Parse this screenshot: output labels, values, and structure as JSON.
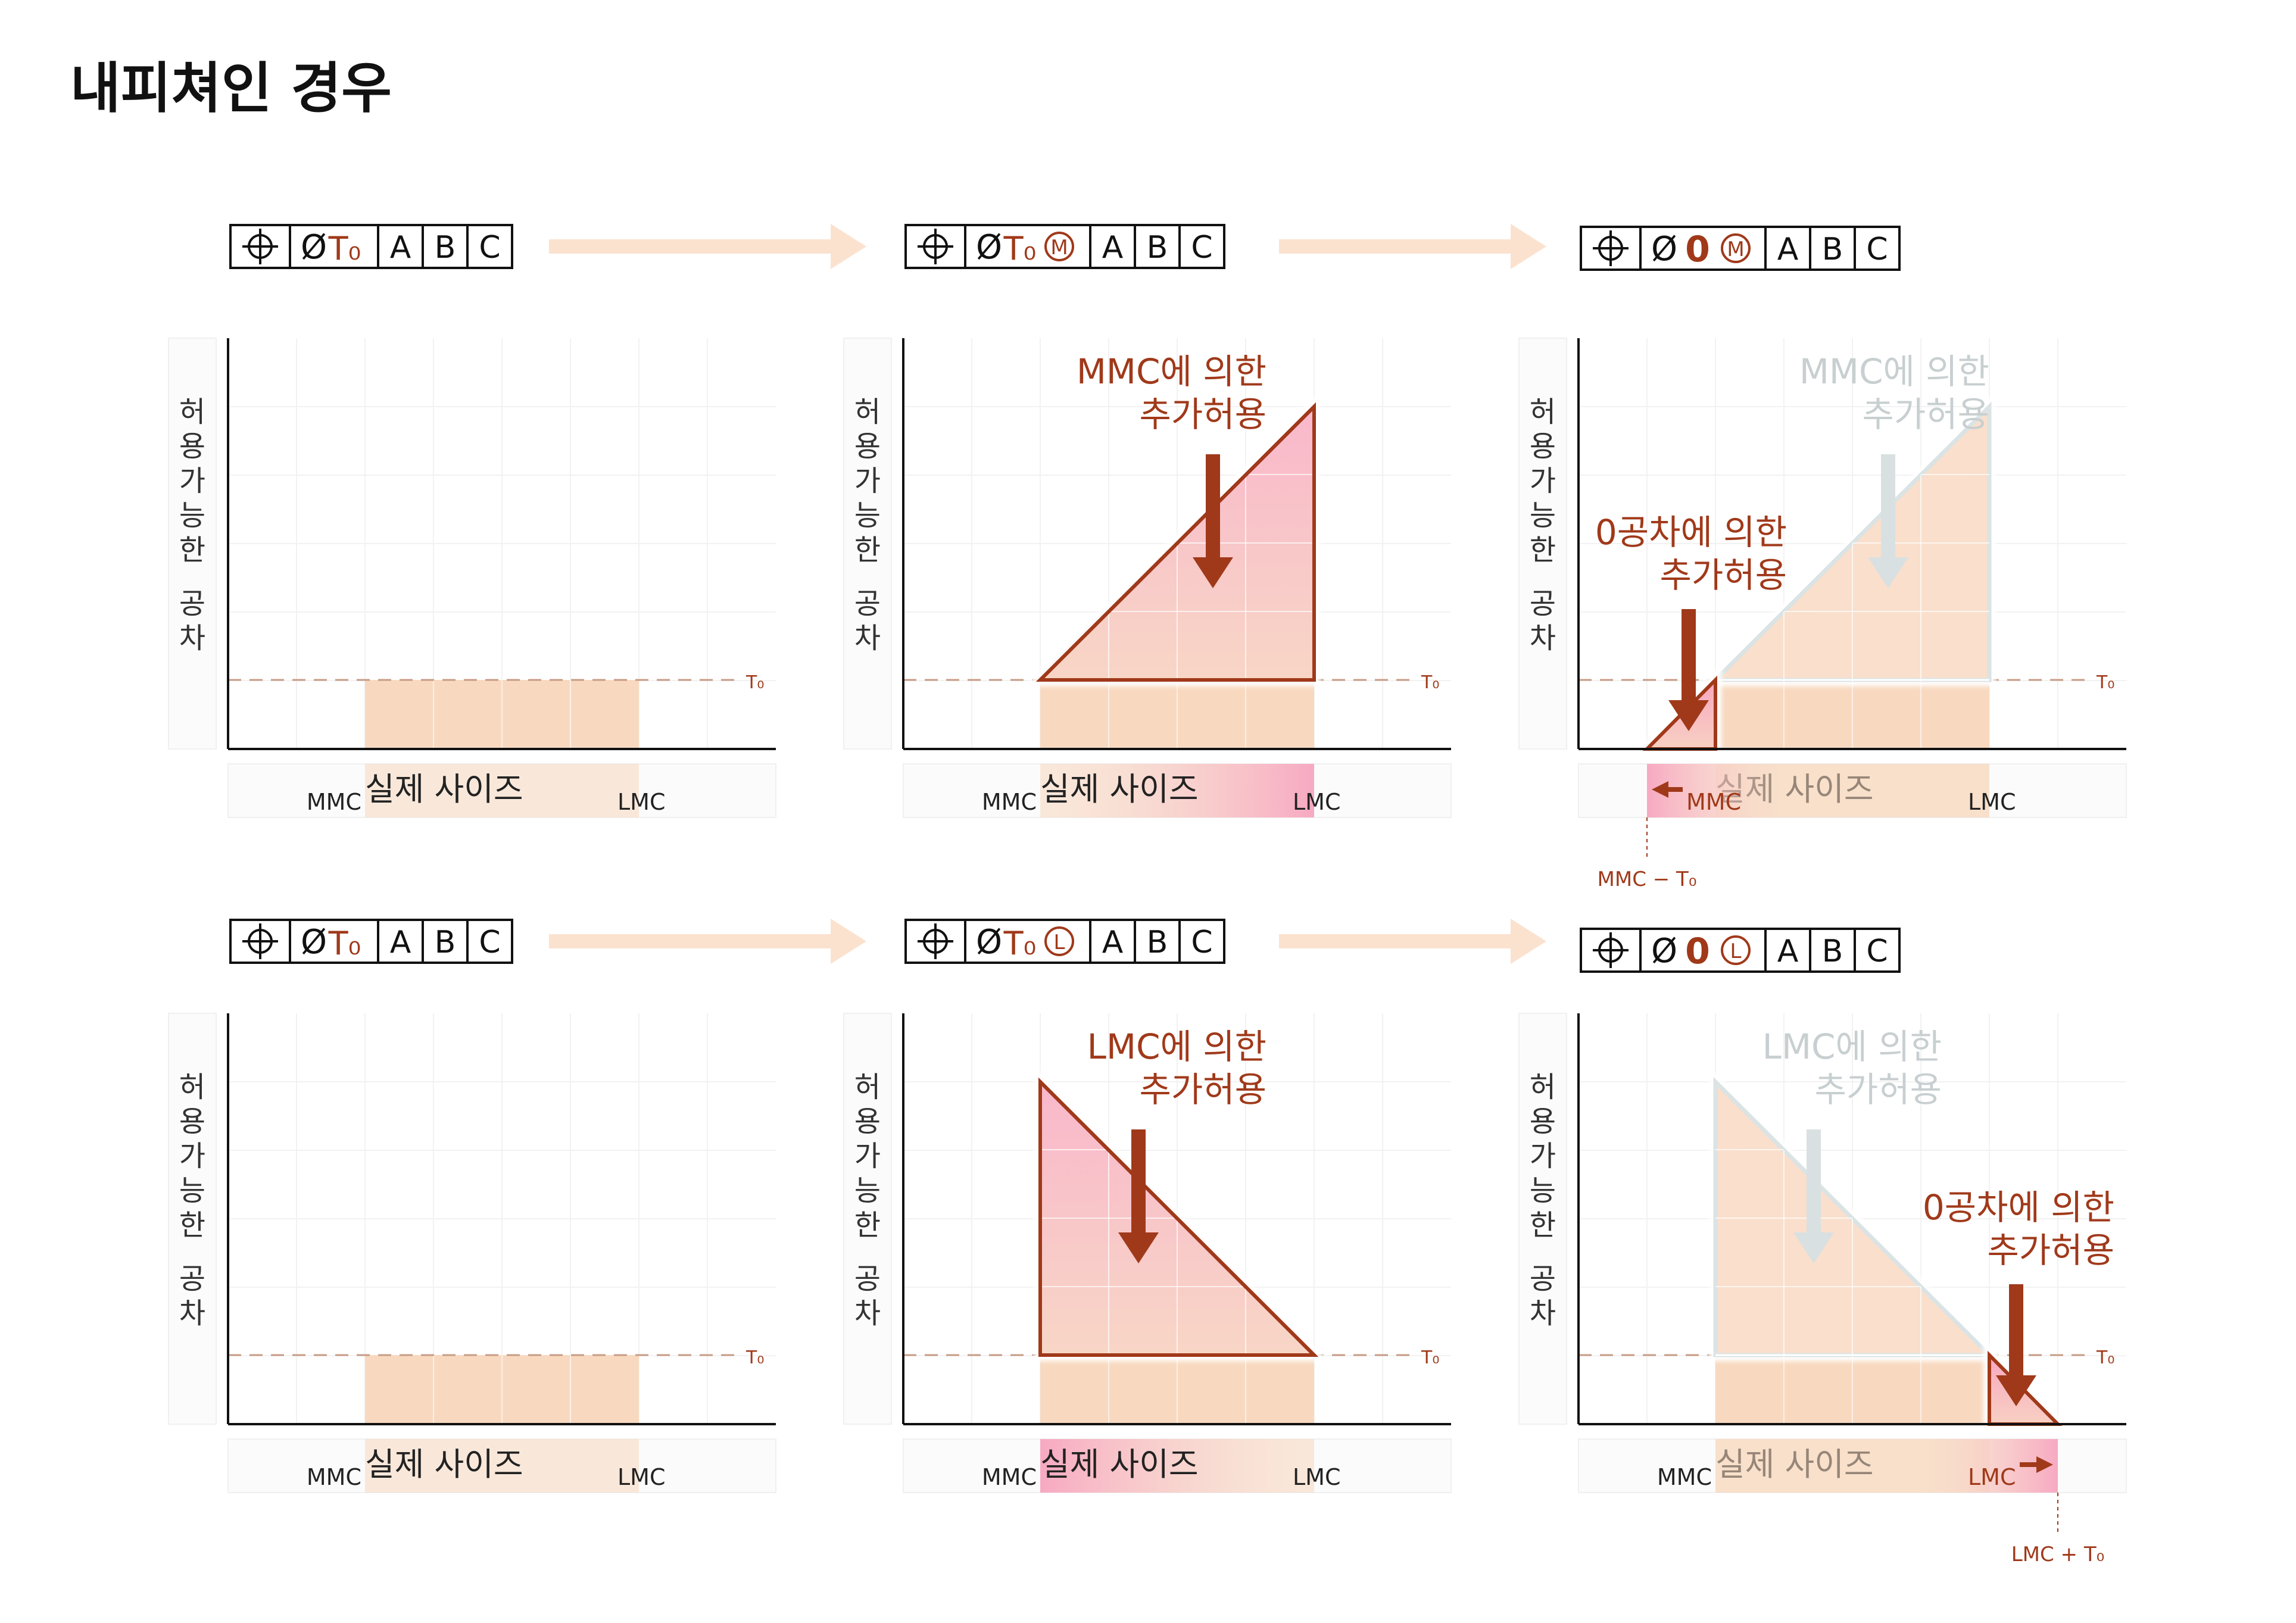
{
  "title": "내피쳐인 경우",
  "labels": {
    "y_axis": "허용가능한 공차",
    "x_axis": "실제 사이즈",
    "mmc": "MMC",
    "lmc": "LMC",
    "t0": "T₀",
    "mmc_minus_t0": "MMC − T₀",
    "lmc_plus_t0": "LMC + T₀"
  },
  "colors": {
    "accent": "#a0391a",
    "light_orange": "#f8d9c0",
    "pink": "#f7b9cb",
    "ghost": "#dbe3e4",
    "dashed": "#c79c86"
  },
  "fcf": {
    "position_icon": "position-crosshair-icon",
    "diameter": "Ø",
    "t0": "T₀",
    "zero": "0",
    "mmc_mod": "M",
    "lmc_mod": "L",
    "datums": [
      "A",
      "B",
      "C"
    ]
  },
  "annotations": {
    "mmc_line1": "MMC에 의한",
    "lmc_line1": "LMC에 의한",
    "zero_line1": "0공차에 의한",
    "line2": "추가허용"
  }
}
